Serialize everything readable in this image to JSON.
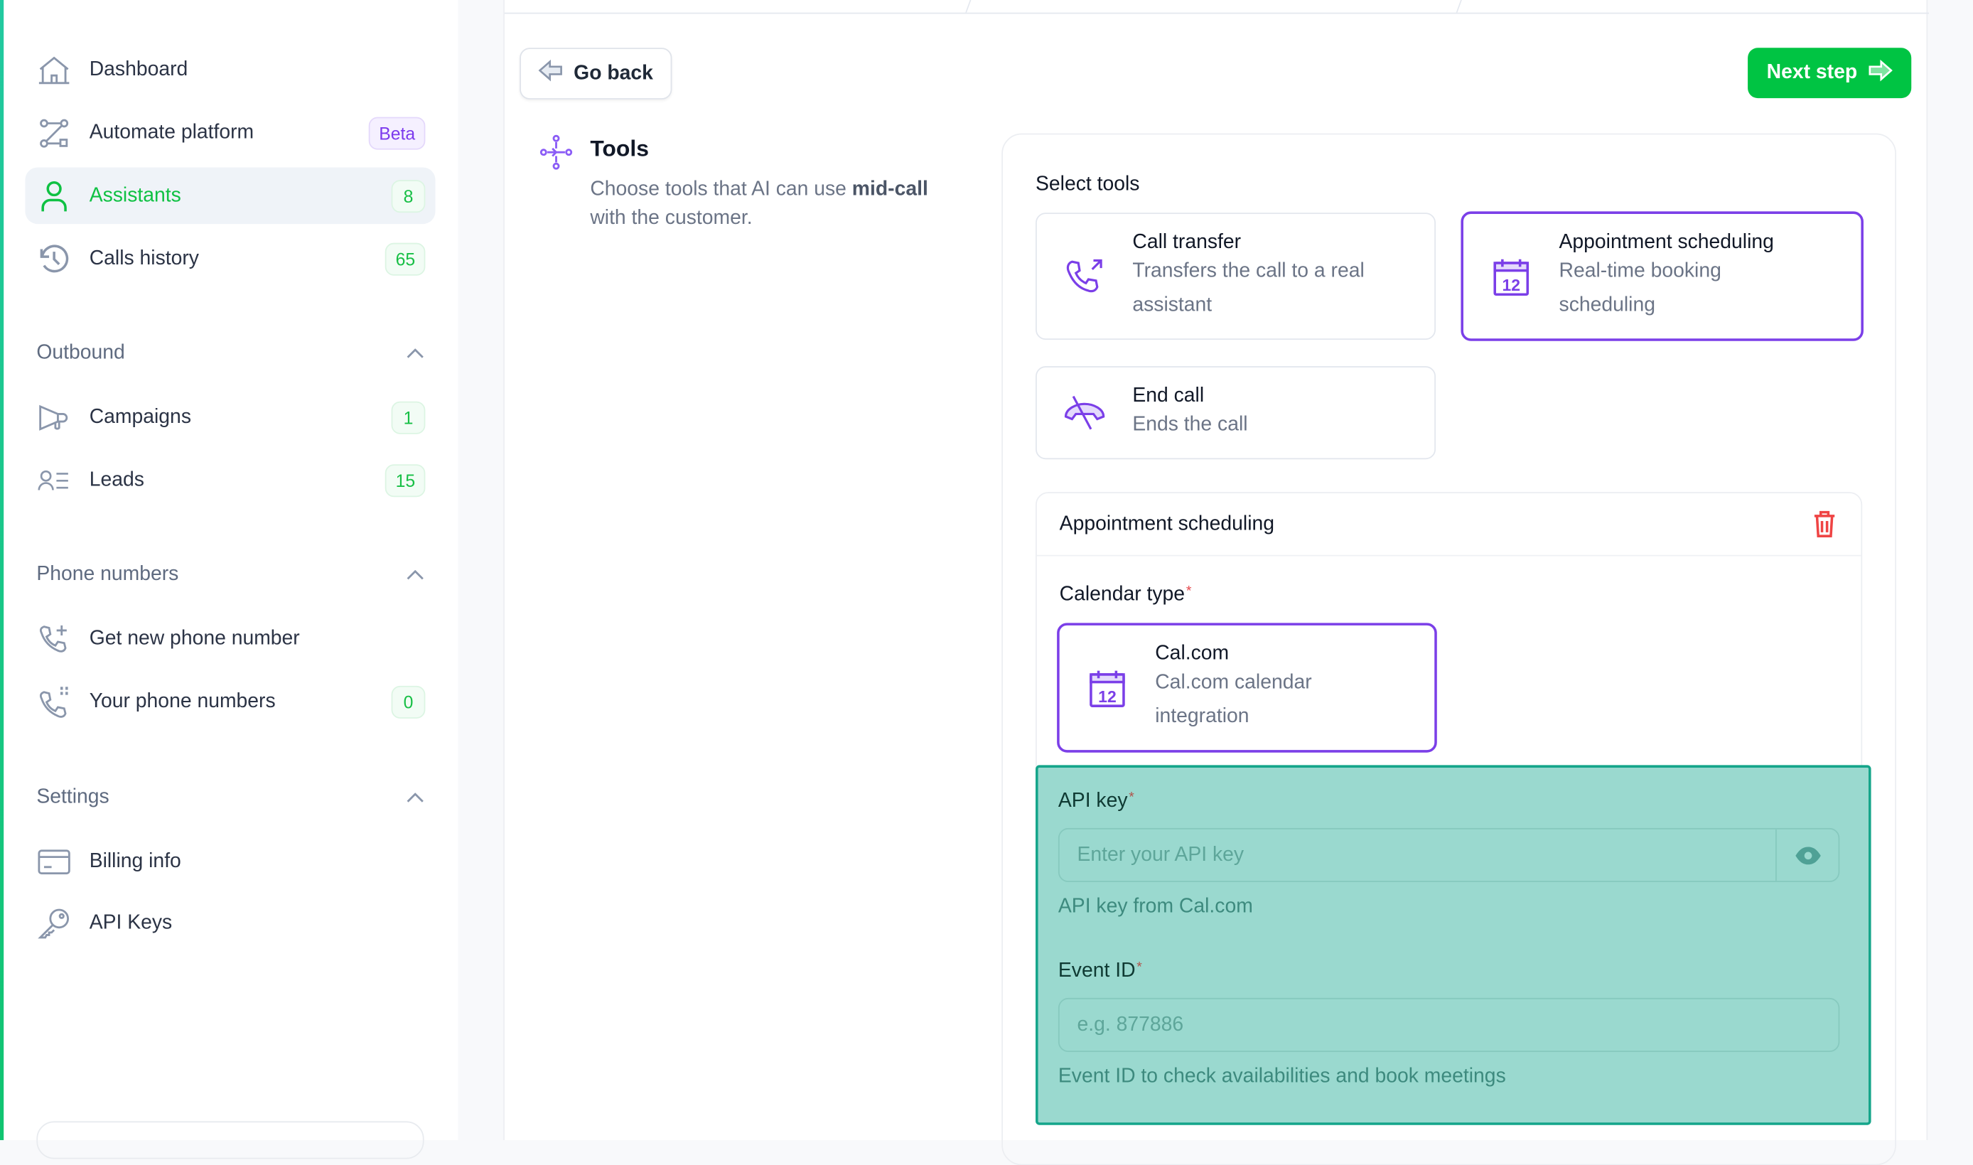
{
  "sidebar": {
    "items": [
      {
        "label": "Dashboard",
        "icon": "home-icon"
      },
      {
        "label": "Automate platform",
        "icon": "workflow-icon",
        "badge": "Beta"
      },
      {
        "label": "Assistants",
        "icon": "user-icon",
        "badge": "8",
        "active": true
      },
      {
        "label": "Calls history",
        "icon": "history-icon",
        "badge": "65"
      }
    ],
    "outbound": {
      "title": "Outbound",
      "items": [
        {
          "label": "Campaigns",
          "badge": "1"
        },
        {
          "label": "Leads",
          "badge": "15"
        }
      ]
    },
    "phone": {
      "title": "Phone numbers",
      "items": [
        {
          "label": "Get new phone number"
        },
        {
          "label": "Your phone numbers",
          "badge": "0"
        }
      ]
    },
    "settings": {
      "title": "Settings",
      "items": [
        {
          "label": "Billing info"
        },
        {
          "label": "API Keys"
        }
      ]
    }
  },
  "header": {
    "back": "Go back",
    "next": "Next step"
  },
  "section": {
    "title": "Tools",
    "desc_pre": "Choose tools that AI can use ",
    "desc_bold": "mid-call",
    "desc_post": " with the customer."
  },
  "tools": {
    "title": "Select tools",
    "items": [
      {
        "title": "Call transfer",
        "desc": "Transfers the call to a real assistant",
        "selected": false
      },
      {
        "title": "Appointment scheduling",
        "desc": "Real-time booking scheduling",
        "selected": true
      },
      {
        "title": "End call",
        "desc": "Ends the call",
        "selected": false
      }
    ]
  },
  "appointment": {
    "title": "Appointment scheduling",
    "calendar_label": "Calendar type",
    "calendar": {
      "title": "Cal.com",
      "desc": "Cal.com calendar integration"
    },
    "api_key": {
      "label": "API key",
      "placeholder": "Enter your API key",
      "help": "API key from Cal.com"
    },
    "event_id": {
      "label": "Event ID",
      "placeholder": "e.g. 877886",
      "help": "Event ID to check availabilities and book meetings"
    },
    "required": "*"
  },
  "colors": {
    "accent": "#00c443",
    "selected": "#7b3fe8",
    "highlight": "#9ad9cf",
    "danger": "#ef4444"
  }
}
